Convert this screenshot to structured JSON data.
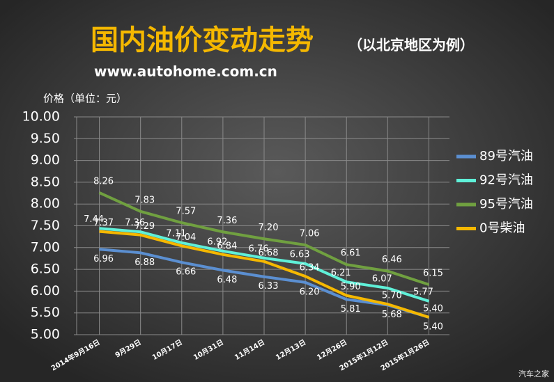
{
  "chart_data": {
    "type": "line",
    "title": "国内油价变动走势",
    "subtitle": "（以北京地区为例）",
    "source": "www.autohome.com.cn",
    "y_label": "价格（单位：元）",
    "watermark": "汽车之家",
    "categories": [
      "2014年9月16日",
      "9月29日",
      "10月17日",
      "10月31日",
      "11月14日",
      "12月13日",
      "12月26日",
      "2015年1月12日",
      "2015年1月26日"
    ],
    "series": [
      {
        "name": "89号汽油",
        "color": "#5b8fd1",
        "values": [
          6.96,
          6.88,
          6.66,
          6.48,
          6.33,
          6.2,
          5.81,
          5.68,
          5.4
        ],
        "value_labels": [
          "6.96",
          "6.88",
          "6.66",
          "6.48",
          "6.33",
          "6.20",
          "5.81",
          "5.68",
          "5.40"
        ]
      },
      {
        "name": "92号汽油",
        "color": "#5ff0d8",
        "values": [
          7.44,
          7.36,
          7.11,
          6.92,
          6.76,
          6.63,
          6.21,
          6.07,
          5.77
        ],
        "value_labels": [
          "7.44",
          "7.36",
          "7.11",
          "6.92",
          "6.76",
          "6.63",
          "6.21",
          "6.07",
          "5.77"
        ]
      },
      {
        "name": "95号汽油",
        "color": "#70a040",
        "values": [
          8.26,
          7.83,
          7.57,
          7.36,
          7.2,
          7.06,
          6.61,
          6.46,
          6.15
        ],
        "value_labels": [
          "8.26",
          "7.83",
          "7.57",
          "7.36",
          "7.20",
          "7.06",
          "6.61",
          "6.46",
          "6.15"
        ]
      },
      {
        "name": "0号柴油",
        "color": "#f5b800",
        "values": [
          7.37,
          7.29,
          7.04,
          6.84,
          6.68,
          6.34,
          5.9,
          5.7,
          5.4
        ],
        "value_labels": [
          "7.37",
          "7.29",
          "7.04",
          "6.84",
          "6.68",
          "6.34",
          "5.90",
          "5.70",
          "5.40"
        ]
      }
    ],
    "ylim": [
      5,
      10
    ],
    "yticks": [
      {
        "value": 5,
        "label": "5.00"
      },
      {
        "value": 5.5,
        "label": "5.50"
      },
      {
        "value": 6,
        "label": "6.00"
      },
      {
        "value": 6.5,
        "label": "6.50"
      },
      {
        "value": 7,
        "label": "7.00"
      },
      {
        "value": 7.5,
        "label": "7.50"
      },
      {
        "value": 8,
        "label": "8.00"
      },
      {
        "value": 8.5,
        "label": "8.50"
      },
      {
        "value": 9,
        "label": "9.00"
      },
      {
        "value": 9.5,
        "label": "9.50"
      },
      {
        "value": 10,
        "label": "10.00"
      }
    ],
    "grid": true,
    "legend": "right"
  }
}
